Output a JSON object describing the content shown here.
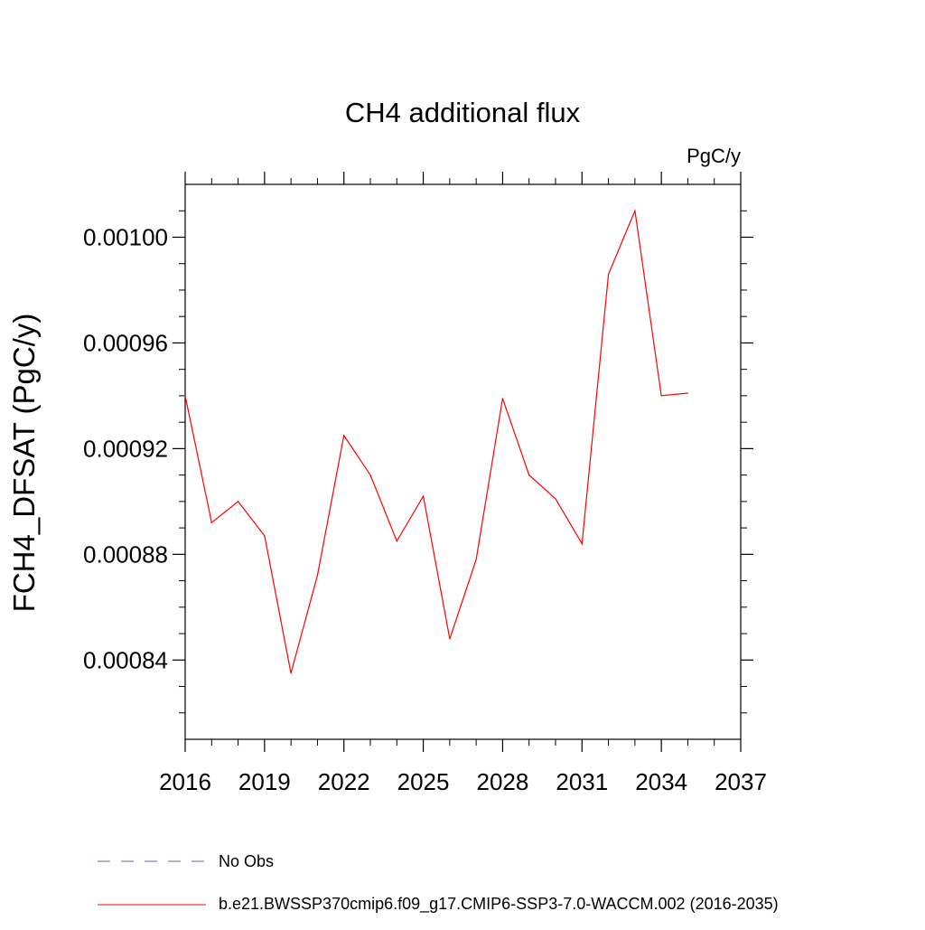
{
  "chart_data": {
    "type": "line",
    "title": "CH4 additional flux",
    "units_label": "PgC/y",
    "ylabel": "FCH4_DFSAT  (PgC/y)",
    "xlabel": "",
    "xlim": [
      2016,
      2037
    ],
    "ylim": [
      0.00081,
      0.00102
    ],
    "x_ticks": [
      2016,
      2019,
      2022,
      2025,
      2028,
      2031,
      2034,
      2037
    ],
    "x_tick_labels": [
      "2016",
      "2019",
      "2022",
      "2025",
      "2028",
      "2031",
      "2034",
      "2037"
    ],
    "y_ticks": [
      0.00084,
      0.00088,
      0.00092,
      0.00096,
      0.001
    ],
    "y_tick_labels": [
      "0.00084",
      "0.00088",
      "0.00092",
      "0.00096",
      "0.00100"
    ],
    "grid": false,
    "series": [
      {
        "name": "b.e21.BWSSP370cmip6.f09_g17.CMIP6-SSP3-7.0-WACCM.002 (2016-2035)",
        "color": "#ff0000",
        "style": "solid",
        "x": [
          2016,
          2017,
          2018,
          2019,
          2020,
          2021,
          2022,
          2023,
          2024,
          2025,
          2026,
          2027,
          2028,
          2029,
          2030,
          2031,
          2032,
          2033,
          2034,
          2035
        ],
        "y": [
          0.00094,
          0.000892,
          0.0009,
          0.000887,
          0.000835,
          0.000872,
          0.000925,
          0.00091,
          0.000885,
          0.000902,
          0.000848,
          0.000878,
          0.000939,
          0.00091,
          0.000901,
          0.000884,
          0.000986,
          0.00101,
          0.00094,
          0.000941
        ]
      }
    ],
    "legend": {
      "placement": "bottom",
      "entries": [
        {
          "label": "No Obs",
          "color": "#6a5acd",
          "style": "dashed"
        },
        {
          "label": "b.e21.BWSSP370cmip6.f09_g17.CMIP6-SSP3-7.0-WACCM.002 (2016-2035)",
          "color": "#ff0000",
          "style": "solid"
        }
      ]
    }
  }
}
